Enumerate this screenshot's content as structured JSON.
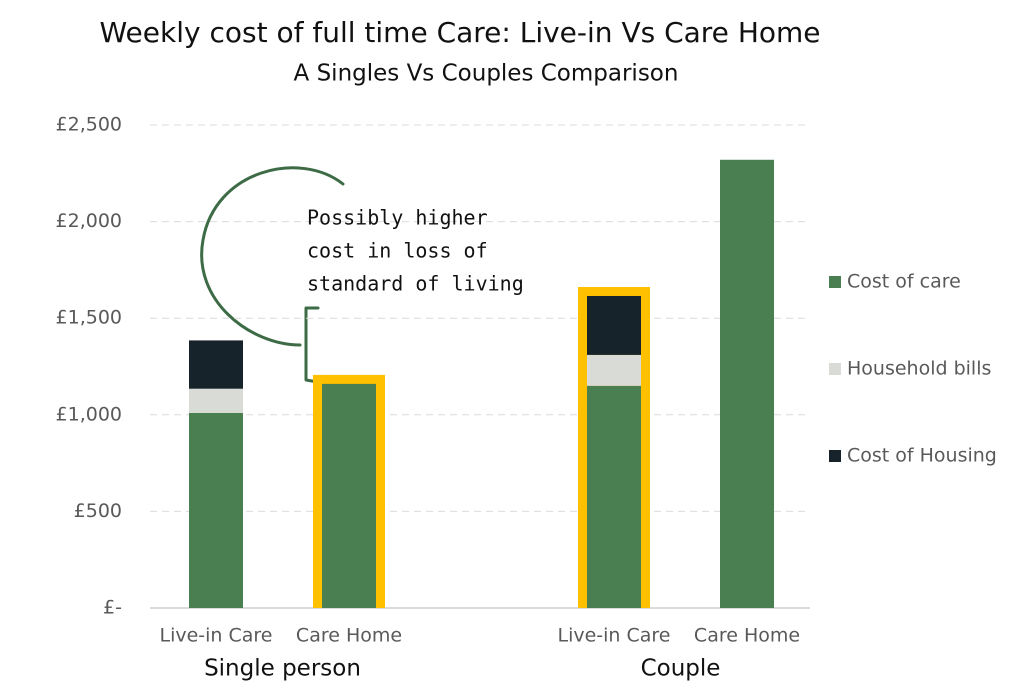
{
  "chart_data": {
    "type": "stacked-bar",
    "title": "Weekly cost of full time Care: Live-in Vs Care Home",
    "subtitle": "A Singles Vs Couples Comparison",
    "groups": [
      {
        "name": "Single person",
        "categories": [
          "Live-in Care",
          "Care Home"
        ]
      },
      {
        "name": "Couple",
        "categories": [
          "Live-in Care",
          "Care Home"
        ]
      }
    ],
    "series": [
      {
        "name": "Cost of care",
        "color": "#4a7f52",
        "values": [
          1010,
          1160,
          1150,
          2320
        ]
      },
      {
        "name": "Household bills",
        "color": "#d9dcd6",
        "values": [
          125,
          0,
          160,
          0
        ]
      },
      {
        "name": "Cost of Housing",
        "color": "#17232a",
        "values": [
          250,
          0,
          305,
          0
        ]
      }
    ],
    "highlighted": [
      false,
      true,
      true,
      false
    ],
    "highlight_color": "#ffc000",
    "ylim": [
      0,
      2500
    ],
    "yticks": [
      {
        "value": 0,
        "label": "£-"
      },
      {
        "value": 500,
        "label": "£500"
      },
      {
        "value": 1000,
        "label": "£1,000"
      },
      {
        "value": 1500,
        "label": "£1,500"
      },
      {
        "value": 2000,
        "label": "£2,000"
      },
      {
        "value": 2500,
        "label": "£2,500"
      }
    ],
    "grid": true,
    "legend": "right",
    "annotation": [
      "Possibly higher",
      "cost in loss of",
      "standard of living"
    ]
  }
}
